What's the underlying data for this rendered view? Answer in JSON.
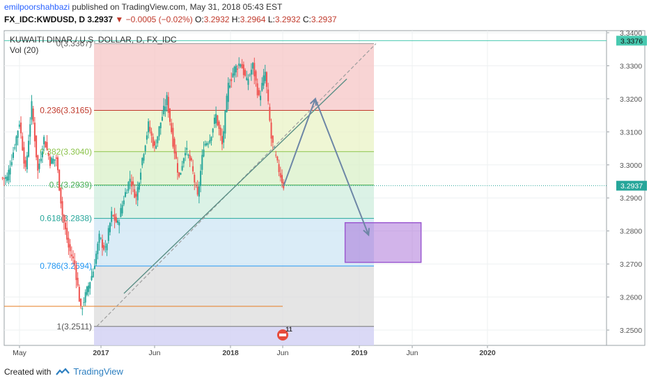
{
  "header": {
    "author": "emilpoorshahbazi",
    "published": "published on TradingView.com, May 31, 2018 05:43 EST",
    "symbol": "FX_IDC:KWDUSD, D",
    "last": "3.2937",
    "change": "−0.0005 (−0.02%)",
    "ohlc": [
      {
        "label": "O:",
        "value": "3.2932"
      },
      {
        "label": "H:",
        "value": "3.2964"
      },
      {
        "label": "L:",
        "value": "3.2932"
      },
      {
        "label": "C:",
        "value": "3.2937"
      }
    ]
  },
  "footer": {
    "created_with": "Created with",
    "brand": "TradingView"
  },
  "colors": {
    "up": "#26a69a",
    "down": "#ef5350",
    "accent": "#2962ff",
    "box": "#9b59d0"
  },
  "chart_data": {
    "type": "candlestick",
    "title": "KUWAITI DINAR / U.S. DOLLAR, D, FX_IDC",
    "indicator": "Vol (20)",
    "y_ticks": [
      "3.3400",
      "3.3300",
      "3.3200",
      "3.3100",
      "3.3000",
      "3.2900",
      "3.2800",
      "3.2700",
      "3.2600",
      "3.2500"
    ],
    "x_ticks": [
      "May",
      "2017",
      "Jun",
      "2018",
      "Jun",
      "2019",
      "Jun",
      "2020"
    ],
    "last_price": "3.2937",
    "high_marker": "3.3376",
    "fib_levels": [
      {
        "label": "0(3.3367)",
        "value": 3.3367
      },
      {
        "label": "0.236(3.3165)",
        "value": 3.3165
      },
      {
        "label": "0.382(3.3040)",
        "value": 3.304
      },
      {
        "label": "0.5(3.2939)",
        "value": 3.2939
      },
      {
        "label": "0.618(3.2838)",
        "value": 3.2838
      },
      {
        "label": "0.786(3.2694)",
        "value": 3.2694
      },
      {
        "label": "1(3.2511)",
        "value": 3.2511
      }
    ],
    "projection": [
      {
        "date": "2018-05-31",
        "price": 3.2937
      },
      {
        "date": "2018-08-28",
        "price": 3.32
      },
      {
        "date": "2019-01-25",
        "price": 3.2788
      }
    ],
    "target_box": {
      "from": "2018-11-20",
      "to": "2019-06-22",
      "low": 3.2705,
      "high": 3.2825
    },
    "trendline": {
      "from": {
        "date": "2016-12-20",
        "price": 3.2511
      },
      "to": {
        "date": "2019-02-15",
        "price": 3.3367
      }
    },
    "event_badge": "11",
    "series_close": [
      3.296,
      3.304,
      3.313,
      3.298,
      3.318,
      3.298,
      3.308,
      3.301,
      3.302,
      3.285,
      3.275,
      3.27,
      3.256,
      3.262,
      3.268,
      3.278,
      3.274,
      3.285,
      3.282,
      3.29,
      3.296,
      3.29,
      3.302,
      3.312,
      3.305,
      3.313,
      3.32,
      3.307,
      3.296,
      3.305,
      3.3,
      3.29,
      3.306,
      3.308,
      3.315,
      3.306,
      3.324,
      3.329,
      3.331,
      3.325,
      3.33,
      3.32,
      3.328,
      3.308,
      3.3,
      3.2937
    ]
  }
}
